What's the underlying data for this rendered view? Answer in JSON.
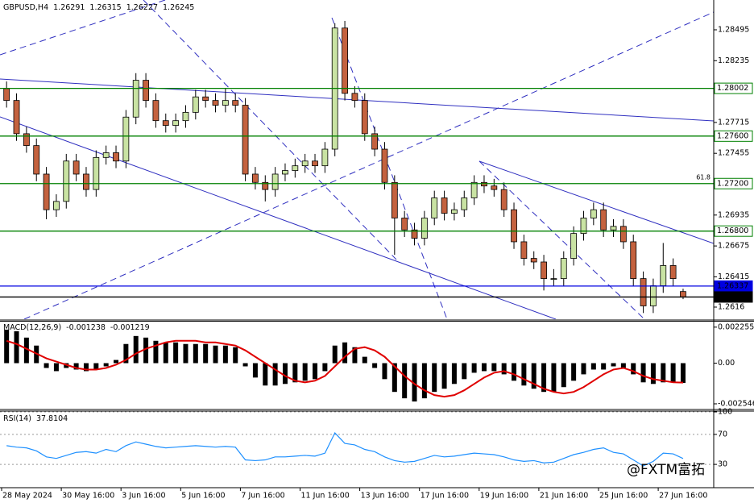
{
  "chart_data": [
    {
      "type": "candlestick",
      "title": "GBPUSD,H4",
      "header_values": [
        1.26291,
        1.26315,
        1.26227,
        1.26245
      ],
      "up_color": "#c9e3a3",
      "down_color": "#c4623f",
      "candles": [
        [
          1.28,
          1.2806,
          1.2784,
          1.279
        ],
        [
          1.279,
          1.2796,
          1.2756,
          1.2762
        ],
        [
          1.2762,
          1.2768,
          1.2746,
          1.2752
        ],
        [
          1.2752,
          1.2758,
          1.2722,
          1.2728
        ],
        [
          1.2728,
          1.2734,
          1.269,
          1.2698
        ],
        [
          1.2698,
          1.2711,
          1.2692,
          1.2705
        ],
        [
          1.2705,
          1.2745,
          1.2699,
          1.2739
        ],
        [
          1.2739,
          1.2745,
          1.2722,
          1.2728
        ],
        [
          1.2728,
          1.2734,
          1.2709,
          1.2715
        ],
        [
          1.2715,
          1.2748,
          1.2709,
          1.2742
        ],
        [
          1.2742,
          1.2752,
          1.2736,
          1.2746
        ],
        [
          1.2746,
          1.2752,
          1.2733,
          1.2739
        ],
        [
          1.2739,
          1.2782,
          1.2733,
          1.2776
        ],
        [
          1.2776,
          1.2813,
          1.277,
          1.2807
        ],
        [
          1.2807,
          1.2813,
          1.2784,
          1.279
        ],
        [
          1.279,
          1.2796,
          1.2767,
          1.2773
        ],
        [
          1.2773,
          1.2779,
          1.2763,
          1.2769
        ],
        [
          1.2769,
          1.2779,
          1.2763,
          1.2773
        ],
        [
          1.2773,
          1.2786,
          1.2767,
          1.278
        ],
        [
          1.278,
          1.2799,
          1.2774,
          1.2793
        ],
        [
          1.2793,
          1.2799,
          1.2784,
          1.279
        ],
        [
          1.279,
          1.2796,
          1.278,
          1.2786
        ],
        [
          1.2786,
          1.28,
          1.278,
          1.279
        ],
        [
          1.279,
          1.2796,
          1.278,
          1.2786
        ],
        [
          1.2786,
          1.2792,
          1.2722,
          1.2728
        ],
        [
          1.2728,
          1.2734,
          1.2715,
          1.2721
        ],
        [
          1.2721,
          1.2727,
          1.2705,
          1.2715
        ],
        [
          1.2715,
          1.2734,
          1.2709,
          1.2728
        ],
        [
          1.2728,
          1.2737,
          1.2722,
          1.2731
        ],
        [
          1.2731,
          1.2741,
          1.2725,
          1.2735
        ],
        [
          1.2735,
          1.2745,
          1.2729,
          1.2739
        ],
        [
          1.2739,
          1.2745,
          1.2729,
          1.2735
        ],
        [
          1.2735,
          1.2755,
          1.2729,
          1.2749
        ],
        [
          1.2749,
          1.2855,
          1.2743,
          1.2851
        ],
        [
          1.2851,
          1.2857,
          1.279,
          1.2796
        ],
        [
          1.2796,
          1.2802,
          1.2784,
          1.279
        ],
        [
          1.279,
          1.2796,
          1.2756,
          1.2762
        ],
        [
          1.2762,
          1.2768,
          1.2743,
          1.2749
        ],
        [
          1.2749,
          1.2755,
          1.2715,
          1.2721
        ],
        [
          1.2721,
          1.2727,
          1.266,
          1.2691
        ],
        [
          1.2691,
          1.2697,
          1.2675,
          1.2681
        ],
        [
          1.2681,
          1.2687,
          1.2668,
          1.2674
        ],
        [
          1.2674,
          1.2697,
          1.2668,
          1.2691
        ],
        [
          1.2691,
          1.2714,
          1.2685,
          1.2708
        ],
        [
          1.2708,
          1.2714,
          1.2689,
          1.2695
        ],
        [
          1.2695,
          1.2704,
          1.2689,
          1.2698
        ],
        [
          1.2698,
          1.2714,
          1.2692,
          1.2708
        ],
        [
          1.2708,
          1.2727,
          1.2702,
          1.2721
        ],
        [
          1.2721,
          1.2727,
          1.2712,
          1.2718
        ],
        [
          1.2718,
          1.2724,
          1.2709,
          1.2715
        ],
        [
          1.2715,
          1.2721,
          1.2692,
          1.2698
        ],
        [
          1.2698,
          1.2704,
          1.2665,
          1.2671
        ],
        [
          1.2671,
          1.2677,
          1.2651,
          1.2657
        ],
        [
          1.2657,
          1.2663,
          1.2648,
          1.2654
        ],
        [
          1.2654,
          1.266,
          1.263,
          1.264
        ],
        [
          1.264,
          1.2648,
          1.2634,
          1.264
        ],
        [
          1.264,
          1.2663,
          1.2634,
          1.2657
        ],
        [
          1.2657,
          1.2684,
          1.2651,
          1.2678
        ],
        [
          1.2678,
          1.2697,
          1.2672,
          1.2691
        ],
        [
          1.2691,
          1.2704,
          1.2685,
          1.2698
        ],
        [
          1.2698,
          1.2704,
          1.2675,
          1.2681
        ],
        [
          1.2681,
          1.269,
          1.2675,
          1.2684
        ],
        [
          1.2684,
          1.269,
          1.2665,
          1.2671
        ],
        [
          1.2671,
          1.2677,
          1.2634,
          1.264
        ],
        [
          1.264,
          1.2646,
          1.2611,
          1.2617
        ],
        [
          1.2617,
          1.264,
          1.2611,
          1.2634
        ],
        [
          1.2634,
          1.267,
          1.2628,
          1.2651
        ],
        [
          1.2651,
          1.2657,
          1.2634,
          1.264
        ],
        [
          1.26291,
          1.26315,
          1.26227,
          1.26245
        ]
      ],
      "ylim": [
        1.26058,
        1.28746
      ],
      "yticks": [
        1.28495,
        1.28235,
        1.27715,
        1.27455,
        1.26935,
        1.26675,
        1.26415,
        1.2616
      ],
      "levels": [
        {
          "value": 1.28002,
          "color": "#008000"
        },
        {
          "value": 1.276,
          "label": "1.27600",
          "color": "#008000"
        },
        {
          "value": 1.272,
          "label": "1.27200",
          "color": "#008000",
          "note": "61.8"
        },
        {
          "value": 1.268,
          "label": "1.26800",
          "color": "#008000"
        },
        {
          "value": 1.26337,
          "color": "#0000e0"
        },
        {
          "value": 1.26245,
          "color": "#000000"
        }
      ]
    },
    {
      "type": "macd",
      "title": "MACD(12,26,9)",
      "header_values": [
        -0.001238,
        -0.001219
      ],
      "histogram_color": "#000000",
      "signal_color": "#e00000",
      "histogram": [
        0.0021,
        0.002,
        0.0016,
        0.0011,
        -0.0003,
        -0.0005,
        -0.0003,
        -0.0004,
        -0.0005,
        -0.0004,
        -0.0002,
        0.0002,
        0.0012,
        0.0017,
        0.0016,
        0.0014,
        0.0013,
        0.0013,
        0.0012,
        0.0012,
        0.0012,
        0.0011,
        0.0011,
        0.001,
        -0.0002,
        -0.0009,
        -0.0014,
        -0.0014,
        -0.0013,
        -0.0012,
        -0.0011,
        -0.001,
        -0.0005,
        0.0011,
        0.0013,
        0.001,
        0.0004,
        -0.0003,
        -0.001,
        -0.0018,
        -0.0022,
        -0.0024,
        -0.0022,
        -0.0018,
        -0.0016,
        -0.0013,
        -0.001,
        -0.0006,
        -0.0005,
        -0.0005,
        -0.0007,
        -0.0011,
        -0.0014,
        -0.0016,
        -0.0018,
        -0.0018,
        -0.0015,
        -0.0011,
        -0.0007,
        -0.0004,
        -0.0004,
        -0.0002,
        -0.0003,
        -0.0007,
        -0.0012,
        -0.0013,
        -0.0012,
        -0.0012,
        -0.001238
      ],
      "signal": [
        0.0014,
        0.0012,
        0.0009,
        0.0006,
        0.0003,
        0.0001,
        -0.0001,
        -0.0003,
        -0.0004,
        -0.0004,
        -0.0003,
        -0.0001,
        0.0002,
        0.0006,
        0.0009,
        0.0011,
        0.0013,
        0.0014,
        0.0014,
        0.0014,
        0.0013,
        0.0013,
        0.0012,
        0.0011,
        0.0008,
        0.0004,
        0,
        -0.0004,
        -0.0008,
        -0.0011,
        -0.0012,
        -0.0011,
        -0.0008,
        -0.0002,
        0.0004,
        0.0009,
        0.001,
        0.0008,
        0.0004,
        -0.0002,
        -0.0008,
        -0.0013,
        -0.0017,
        -0.002,
        -0.0021,
        -0.002,
        -0.0017,
        -0.0013,
        -0.0009,
        -0.0006,
        -0.0005,
        -0.0007,
        -0.001,
        -0.0013,
        -0.0016,
        -0.0018,
        -0.0019,
        -0.0018,
        -0.0015,
        -0.0011,
        -0.0007,
        -0.0004,
        -0.0003,
        -0.0005,
        -0.0008,
        -0.001,
        -0.0011,
        -0.0012,
        -0.001219
      ],
      "ylim": [
        -0.00285,
        0.0026
      ],
      "yticks": [
        0.002255,
        {
          "value": 0,
          "label": "0.00"
        },
        -0.002546
      ]
    },
    {
      "type": "line",
      "title": "RSI(14)",
      "header_values": [
        37.8104
      ],
      "color": "#1e90ff",
      "grid": true,
      "values": [
        55,
        53,
        52,
        48,
        40,
        38,
        42,
        46,
        47,
        45,
        50,
        47,
        55,
        60,
        57,
        54,
        52,
        53,
        54,
        55,
        54,
        53,
        54,
        53,
        36,
        35,
        36,
        40,
        40,
        41,
        42,
        41,
        45,
        72,
        58,
        56,
        50,
        47,
        40,
        35,
        33,
        34,
        38,
        42,
        40,
        41,
        43,
        45,
        44,
        43,
        40,
        36,
        34,
        35,
        32,
        33,
        38,
        43,
        46,
        50,
        52,
        46,
        44,
        36,
        28,
        34,
        45,
        44,
        37.8104
      ],
      "ylim": [
        0,
        100
      ],
      "yticks": [
        100,
        70,
        30
      ],
      "xlabels": [
        "28 May 2024",
        "30 May 16:00",
        "3 Jun 16:00",
        "5 Jun 16:00",
        "7 Jun 16:00",
        "11 Jun 16:00",
        "13 Jun 16:00",
        "17 Jun 16:00",
        "19 Jun 16:00",
        "21 Jun 16:00",
        "25 Jun 16:00",
        "27 Jun 16:00"
      ]
    }
  ],
  "watermark": "@FXTM富拓"
}
